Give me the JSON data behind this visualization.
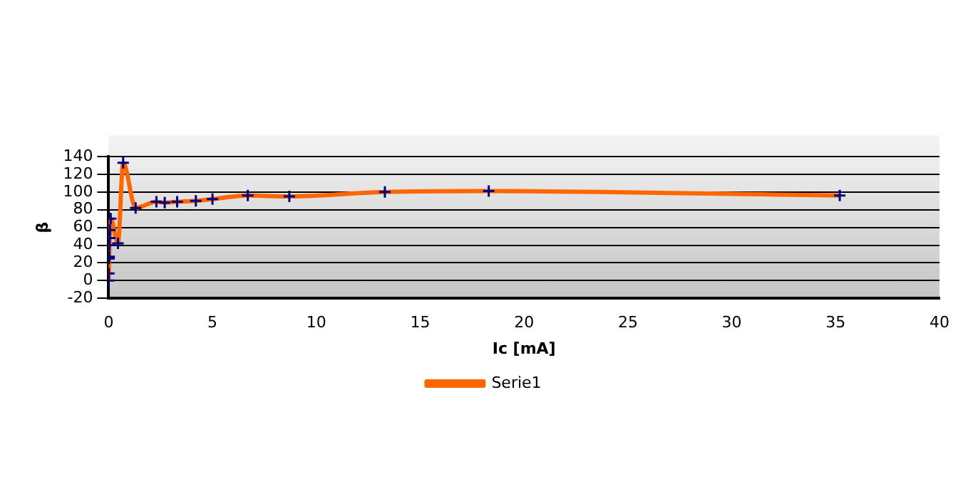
{
  "chart_data": {
    "type": "line",
    "xlabel": "Ic [mA]",
    "ylabel": "β",
    "series": [
      {
        "name": "Serie1",
        "color": "#ff6600",
        "x": [
          0,
          0.01,
          0.02,
          0.03,
          0.04,
          0.05,
          0.06,
          0.1,
          0.45,
          0.7,
          1.3,
          2.3,
          2.7,
          3.3,
          4.2,
          5,
          6.7,
          8.7,
          13.3,
          18.3,
          35.2
        ],
        "values": [
          0,
          8,
          25,
          27,
          40,
          48,
          57,
          70,
          42,
          133,
          82,
          89,
          88,
          89,
          90,
          92,
          96,
          95,
          100,
          101,
          96
        ]
      }
    ],
    "xlim": [
      0,
      40
    ],
    "xticks": [
      0,
      5,
      10,
      15,
      20,
      25,
      30,
      35,
      40
    ],
    "ylim": [
      -20,
      140
    ],
    "yticks": [
      -20,
      0,
      20,
      40,
      60,
      80,
      100,
      120,
      140
    ],
    "grid": "y",
    "legend": "bottom",
    "marker": "cross",
    "line_style": "solid"
  }
}
